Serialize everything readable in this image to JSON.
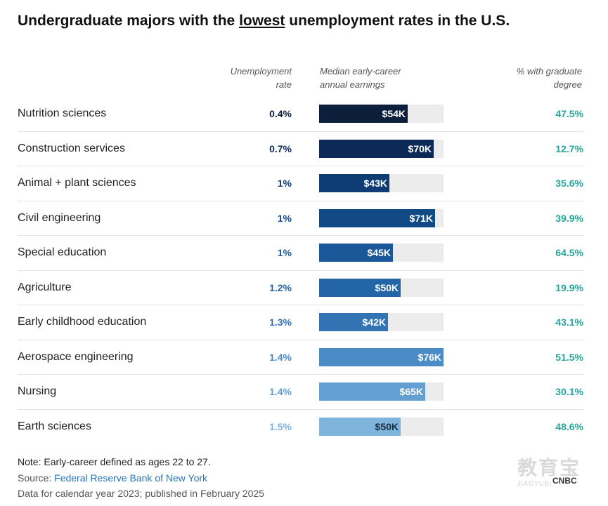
{
  "title": {
    "before": "Undergraduate majors with the ",
    "emph": "lowest",
    "after": " unemployment rates in the U.S."
  },
  "headers": {
    "unemployment": [
      "Unemployment",
      "rate"
    ],
    "earnings": [
      "Median early-career",
      "annual earnings"
    ],
    "graduate": [
      "% with graduate",
      "degree"
    ]
  },
  "chart_data": {
    "type": "table",
    "title": "Undergraduate majors with the lowest unemployment rates in the U.S.",
    "columns": [
      "Unemployment rate",
      "Median early-career annual earnings",
      "% with graduate degree"
    ],
    "bar_max": 76,
    "rows": [
      {
        "major": "Nutrition sciences",
        "unemployment": "0.4%",
        "earnings": 54,
        "earnings_label": "$54K",
        "graduate": "47.5%",
        "color": "#0b1f3a"
      },
      {
        "major": "Construction services",
        "unemployment": "0.7%",
        "earnings": 70,
        "earnings_label": "$70K",
        "graduate": "12.7%",
        "color": "#0c2a55"
      },
      {
        "major": "Animal + plant sciences",
        "unemployment": "1%",
        "earnings": 43,
        "earnings_label": "$43K",
        "graduate": "35.6%",
        "color": "#0f3d73"
      },
      {
        "major": "Civil engineering",
        "unemployment": "1%",
        "earnings": 71,
        "earnings_label": "$71K",
        "graduate": "39.9%",
        "color": "#124a86"
      },
      {
        "major": "Special education",
        "unemployment": "1%",
        "earnings": 45,
        "earnings_label": "$45K",
        "graduate": "64.5%",
        "color": "#1a5899"
      },
      {
        "major": "Agriculture",
        "unemployment": "1.2%",
        "earnings": 50,
        "earnings_label": "$50K",
        "graduate": "19.9%",
        "color": "#2465a6"
      },
      {
        "major": "Early childhood education",
        "unemployment": "1.3%",
        "earnings": 42,
        "earnings_label": "$42K",
        "graduate": "43.1%",
        "color": "#3274b3"
      },
      {
        "major": "Aerospace engineering",
        "unemployment": "1.4%",
        "earnings": 76,
        "earnings_label": "$76K",
        "graduate": "51.5%",
        "color": "#4b8cc6"
      },
      {
        "major": "Nursing",
        "unemployment": "1.4%",
        "earnings": 65,
        "earnings_label": "$65K",
        "graduate": "30.1%",
        "color": "#639fd0"
      },
      {
        "major": "Earth sciences",
        "unemployment": "1.5%",
        "earnings": 50,
        "earnings_label": "$50K",
        "graduate": "48.6%",
        "color": "#7fb4dc"
      }
    ],
    "unemployment_colors": [
      "#0b1f3a",
      "#0c2a55",
      "#0f3d73",
      "#124a86",
      "#1a5899",
      "#2465a6",
      "#3274b3",
      "#4b8cc6",
      "#639fd0",
      "#7fb4dc"
    ],
    "graduate_color": "#26a69a"
  },
  "notes": {
    "note": "Note: Early-career defined as ages 22 to 27.",
    "source_prefix": "Source: ",
    "source_link": "Federal Reserve Bank of New York",
    "data_line": "Data for calendar year 2023; published in February 2025"
  },
  "watermark": {
    "cn": "教育宝",
    "en": "JIAOYUBAO.COM",
    "brand": "CNBC"
  }
}
